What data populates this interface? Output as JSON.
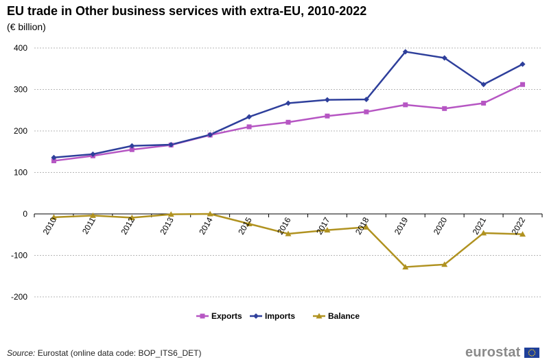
{
  "title": "EU trade in Other business services with extra-EU, 2010-2022",
  "subtitle": "(€ billion)",
  "source": {
    "label": "Source:",
    "text": "Eurostat (online data code: BOP_ITS6_DET)"
  },
  "logo": {
    "text": "eurostat",
    "flag_stars": 12
  },
  "chart_data": {
    "type": "line",
    "title": "EU trade in Other business services with extra-EU, 2010-2022",
    "xlabel": "",
    "ylabel": "€ billion",
    "categories": [
      "2010",
      "2011",
      "2012",
      "2013",
      "2014",
      "2015",
      "2016",
      "2017",
      "2018",
      "2019",
      "2020",
      "2021",
      "2022"
    ],
    "ylim": [
      -200,
      400
    ],
    "yticks": [
      -200,
      -100,
      0,
      100,
      200,
      300,
      400
    ],
    "ytick_labels": [
      "-200",
      "-100",
      "0",
      "100",
      "200",
      "300",
      "400"
    ],
    "grid": true,
    "legend": "bottom-center",
    "series": [
      {
        "name": "Exports",
        "color": "#b656c3",
        "marker": "square",
        "values": [
          128,
          140,
          155,
          166,
          190,
          210,
          221,
          236,
          246,
          263,
          254,
          267,
          312
        ]
      },
      {
        "name": "Imports",
        "color": "#2e3f9b",
        "marker": "diamond",
        "values": [
          136,
          144,
          164,
          167,
          191,
          234,
          267,
          275,
          276,
          391,
          376,
          312,
          361
        ]
      },
      {
        "name": "Balance",
        "color": "#b09220",
        "marker": "triangle",
        "values": [
          -8,
          -4,
          -9,
          -1,
          0,
          -24,
          -48,
          -39,
          -32,
          -128,
          -122,
          -46,
          -49
        ]
      }
    ]
  }
}
